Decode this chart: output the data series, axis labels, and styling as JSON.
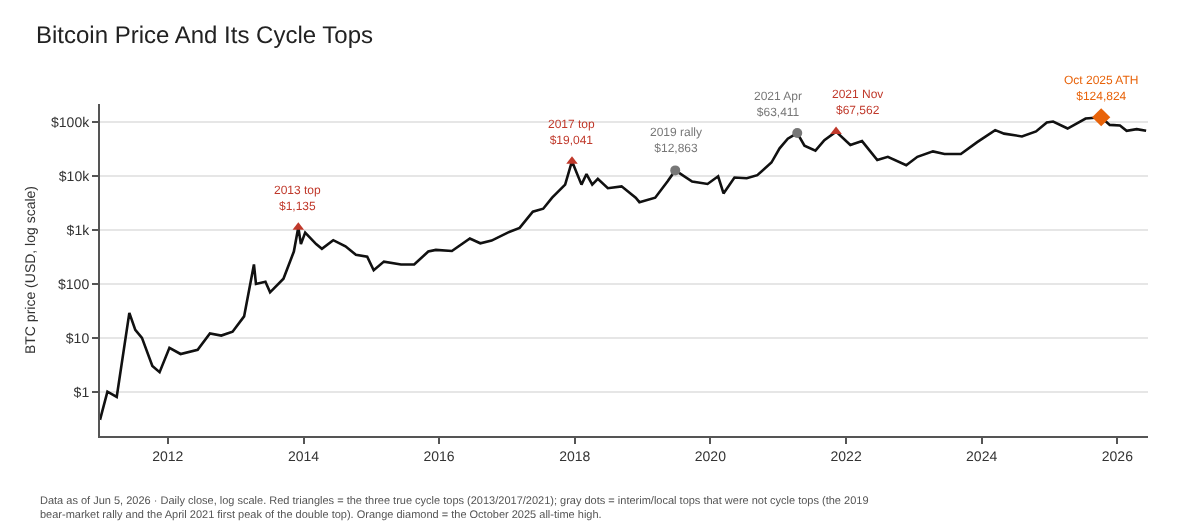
{
  "chart_data": {
    "type": "line",
    "title": "Bitcoin Price And Its Cycle Tops",
    "ylabel": "BTC price (USD, log scale)",
    "log": true,
    "grid": "y",
    "xlim": [
      "2011-01-01",
      "2026-06-15"
    ],
    "xticks": [
      {
        "value": "2012-01-01",
        "label": "2012"
      },
      {
        "value": "2014-01-01",
        "label": "2014"
      },
      {
        "value": "2016-01-01",
        "label": "2016"
      },
      {
        "value": "2018-01-01",
        "label": "2018"
      },
      {
        "value": "2020-01-01",
        "label": "2020"
      },
      {
        "value": "2022-01-01",
        "label": "2022"
      },
      {
        "value": "2024-01-01",
        "label": "2024"
      },
      {
        "value": "2026-01-01",
        "label": "2026"
      }
    ],
    "ylim": [
      0.15,
      220000
    ],
    "yticks": [
      {
        "value": 1,
        "label": "$1"
      },
      {
        "value": 10,
        "label": "$10"
      },
      {
        "value": 100,
        "label": "$100"
      },
      {
        "value": 1000,
        "label": "$1k"
      },
      {
        "value": 10000,
        "label": "$10k"
      },
      {
        "value": 100000,
        "label": "$100k"
      }
    ],
    "series": [
      {
        "color": "#111111",
        "marker": "none",
        "line_style": "solid",
        "x": [
          "2011-01-01",
          "2011-02-10",
          "2011-04-01",
          "2011-06-08",
          "2011-07-10",
          "2011-08-15",
          "2011-10-10",
          "2011-11-18",
          "2012-01-10",
          "2012-03-10",
          "2012-06-10",
          "2012-08-15",
          "2012-10-15",
          "2012-12-15",
          "2013-02-15",
          "2013-04-09",
          "2013-04-20",
          "2013-06-10",
          "2013-07-05",
          "2013-09-15",
          "2013-11-10",
          "2013-12-04",
          "2013-12-18",
          "2014-01-10",
          "2014-03-10",
          "2014-04-10",
          "2014-06-10",
          "2014-08-15",
          "2014-10-10",
          "2014-12-10",
          "2015-01-14",
          "2015-03-10",
          "2015-06-10",
          "2015-08-20",
          "2015-11-04",
          "2015-12-15",
          "2016-03-10",
          "2016-06-15",
          "2016-08-10",
          "2016-10-10",
          "2017-01-05",
          "2017-03-10",
          "2017-05-20",
          "2017-07-15",
          "2017-09-01",
          "2017-11-10",
          "2017-12-17",
          "2018-02-06",
          "2018-03-05",
          "2018-04-05",
          "2018-05-05",
          "2018-06-28",
          "2018-09-10",
          "2018-11-25",
          "2018-12-15",
          "2019-03-10",
          "2019-05-15",
          "2019-06-26",
          "2019-09-25",
          "2019-12-17",
          "2020-02-12",
          "2020-03-12",
          "2020-05-10",
          "2020-07-15",
          "2020-09-10",
          "2020-11-25",
          "2021-01-08",
          "2021-02-21",
          "2021-04-13",
          "2021-05-22",
          "2021-07-20",
          "2021-09-06",
          "2021-11-08",
          "2022-01-24",
          "2022-03-28",
          "2022-06-18",
          "2022-08-14",
          "2022-11-21",
          "2023-01-20",
          "2023-04-14",
          "2023-06-15",
          "2023-09-11",
          "2023-12-08",
          "2024-03-14",
          "2024-05-01",
          "2024-08-05",
          "2024-10-20",
          "2024-12-17",
          "2025-01-20",
          "2025-04-08",
          "2025-07-14",
          "2025-10-06",
          "2025-11-21",
          "2026-01-15",
          "2026-02-20",
          "2026-04-15",
          "2026-06-05"
        ],
        "values": [
          0.3,
          1.0,
          0.8,
          29,
          14,
          10,
          3,
          2.3,
          6.5,
          5,
          6,
          12,
          11,
          13,
          25,
          230,
          100,
          110,
          70,
          125,
          400,
          1135,
          550,
          900,
          550,
          450,
          650,
          500,
          350,
          320,
          180,
          260,
          230,
          230,
          400,
          430,
          410,
          700,
          570,
          640,
          900,
          1100,
          2200,
          2500,
          4000,
          7000,
          19041,
          7000,
          11000,
          7000,
          9000,
          6000,
          6500,
          4000,
          3300,
          4000,
          8000,
          12863,
          8000,
          7200,
          10000,
          4800,
          9500,
          9200,
          10500,
          18000,
          33000,
          50000,
          63411,
          37000,
          30000,
          47000,
          67562,
          38000,
          45000,
          20000,
          23000,
          16000,
          23000,
          29000,
          26000,
          26000,
          43000,
          72000,
          62000,
          55000,
          68000,
          100000,
          104000,
          77000,
          118000,
          124824,
          90000,
          88000,
          70000,
          75000,
          70000
        ]
      },
      {
        "type": "scatter",
        "color": "#c0392b",
        "marker": "triangle",
        "x": [
          "2013-12-04",
          "2017-12-17",
          "2021-11-08"
        ],
        "values": [
          1135,
          19041,
          67562
        ]
      },
      {
        "type": "scatter",
        "color": "#777777",
        "marker": "circle",
        "x": [
          "2019-06-26",
          "2021-04-13"
        ],
        "values": [
          12863,
          63411
        ]
      },
      {
        "type": "scatter",
        "color": "#e8630a",
        "marker": "diamond",
        "x": [
          "2025-10-06"
        ],
        "values": [
          124824
        ]
      }
    ],
    "annotations": [
      {
        "text": "2013 top\n$1,135",
        "x": "2013-12-04",
        "y": 1135
      },
      {
        "text": "2017 top\n$19,041",
        "x": "2017-12-17",
        "y": 19041
      },
      {
        "text": "2019 rally\n$12,863",
        "x": "2019-06-26",
        "y": 12863
      },
      {
        "text": "2021 Apr\n$63,411",
        "x": "2021-04-13",
        "y": 63411
      },
      {
        "text": "2021 Nov\n$67,562",
        "x": "2021-11-08",
        "y": 67562
      },
      {
        "text": "Oct 2025 ATH\n$124,824",
        "x": "2025-10-06",
        "y": 124824
      },
      "Data as of Jun 5, 2026 · Daily close, log scale. Red triangles = the three true cycle tops (2013/2017/2021); gray dots = interim/local tops that were not cycle tops (the 2019 bear-market rally and the April 2021 first peak of the double top). Orange diamond = the October 2025 all-time high."
    ]
  }
}
